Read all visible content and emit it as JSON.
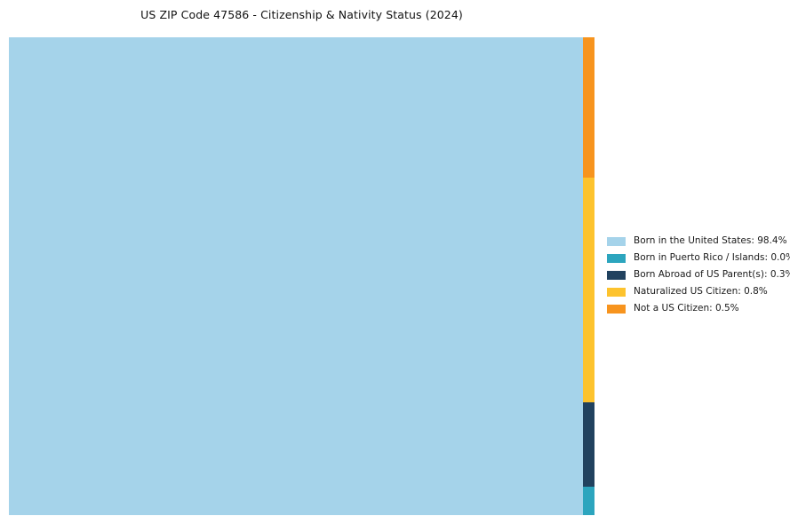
{
  "chart_data": {
    "type": "treemap",
    "title": "US ZIP Code 47586 - Citizenship & Nativity Status (2024)",
    "categories": [
      "Born in the United States",
      "Born in Puerto Rico / Islands",
      "Born Abroad of US Parent(s)",
      "Naturalized US Citizen",
      "Not a US Citizen"
    ],
    "values": [
      98.4,
      0.0,
      0.3,
      0.8,
      0.5
    ],
    "unit": "%",
    "colors": [
      "#A5D3EA",
      "#2CA5BE",
      "#21425F",
      "#FDC32E",
      "#F7941E"
    ],
    "legend": [
      "Born in the United States: 98.4%",
      "Born in Puerto Rico / Islands: 0.0%",
      "Born Abroad of US Parent(s): 0.3%",
      "Naturalized US Citizen: 0.8%",
      "Not a US Citizen: 0.5%"
    ],
    "legend_position": "right"
  }
}
